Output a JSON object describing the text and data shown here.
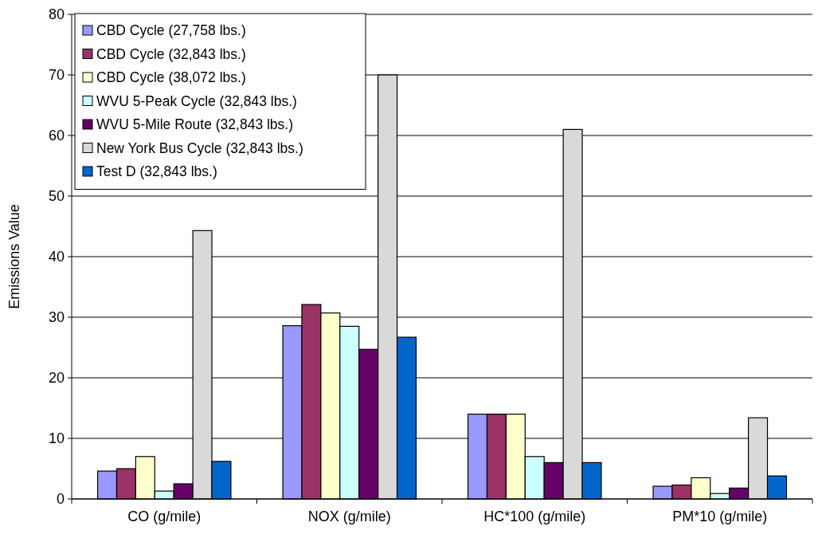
{
  "chart_data": {
    "type": "bar",
    "ylabel": "Emissions Value",
    "categories": [
      "CO (g/mile)",
      "NOX (g/mile)",
      "HC*100 (g/mile)",
      "PM*10 (g/mile)"
    ],
    "series": [
      {
        "name": "CBD Cycle (27,758 lbs.)",
        "color": "#9999ff",
        "values": [
          4.6,
          28.6,
          14,
          2.1
        ]
      },
      {
        "name": "CBD Cycle (32,843 lbs.)",
        "color": "#993366",
        "values": [
          5,
          32.1,
          14,
          2.3
        ]
      },
      {
        "name": "CBD Cycle (38,072 lbs.)",
        "color": "#ffffcc",
        "values": [
          7,
          30.7,
          14,
          3.5
        ]
      },
      {
        "name": "WVU 5-Peak Cycle (32,843 lbs.)",
        "color": "#ccffff",
        "values": [
          1.3,
          28.5,
          7,
          0.9
        ]
      },
      {
        "name": "WVU 5-Mile Route (32,843 lbs.)",
        "color": "#660066",
        "values": [
          2.5,
          24.7,
          6,
          1.8
        ]
      },
      {
        "name": "New York Bus Cycle (32,843 lbs.)",
        "color": "#d9d9d9",
        "values": [
          44.3,
          70,
          61,
          13.4
        ]
      },
      {
        "name": "Test D (32,843 lbs.)",
        "color": "#0066cc",
        "values": [
          6.2,
          26.7,
          6,
          3.8
        ]
      }
    ],
    "ylim": [
      0,
      80
    ],
    "yticks": [
      0,
      10,
      20,
      30,
      40,
      50,
      60,
      70,
      80
    ],
    "grid": "y",
    "legend": "top left"
  }
}
